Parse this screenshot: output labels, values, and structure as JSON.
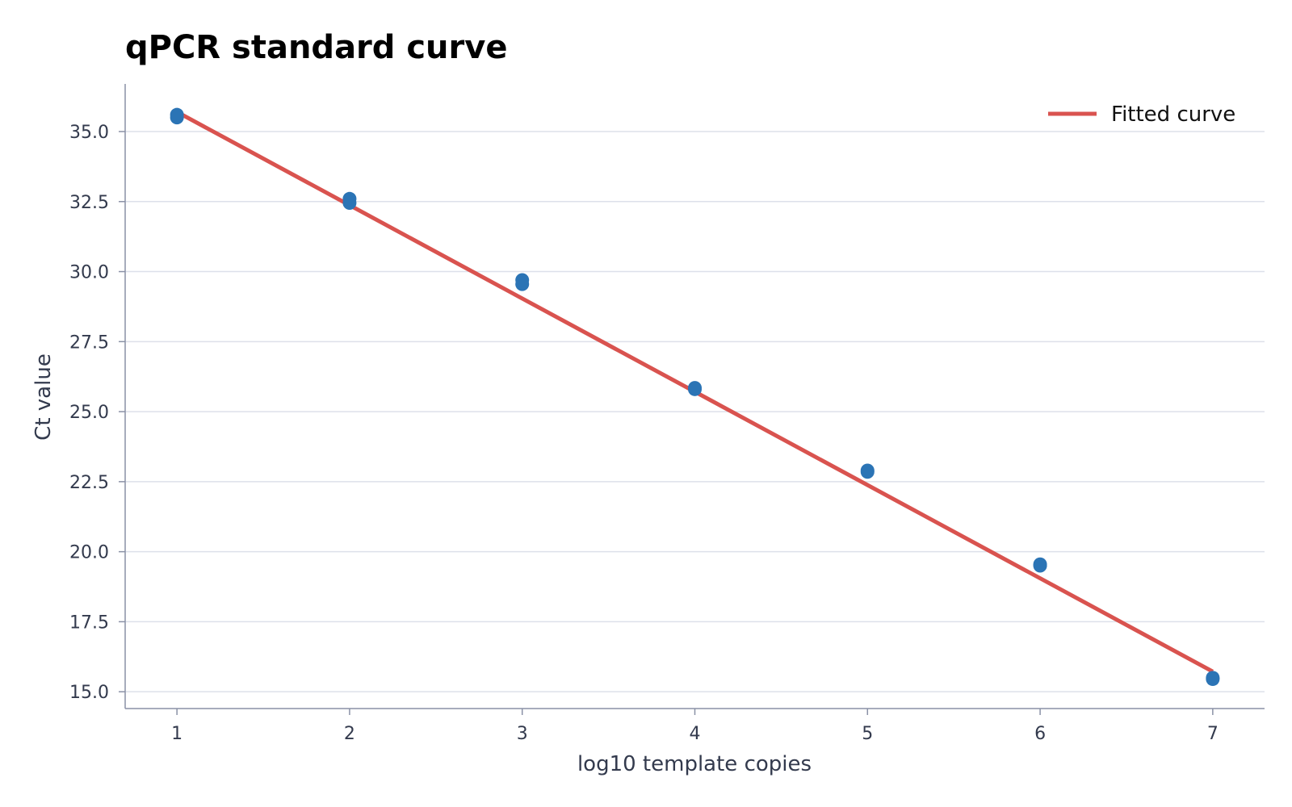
{
  "chart_data": {
    "type": "scatter",
    "title": "qPCR standard curve",
    "xlabel": "log10 template copies",
    "ylabel": "Ct value",
    "xlim": [
      0.7,
      7.3
    ],
    "ylim": [
      14.4,
      36.7
    ],
    "x_ticks": [
      1,
      2,
      3,
      4,
      5,
      6,
      7
    ],
    "x_tick_labels": [
      "1",
      "2",
      "3",
      "4",
      "5",
      "6",
      "7"
    ],
    "y_ticks": [
      15.0,
      17.5,
      20.0,
      22.5,
      25.0,
      27.5,
      30.0,
      32.5,
      35.0
    ],
    "y_tick_labels": [
      "15.0",
      "17.5",
      "20.0",
      "22.5",
      "25.0",
      "27.5",
      "30.0",
      "32.5",
      "35.0"
    ],
    "grid": "horizontal",
    "legend_position": "top-right",
    "series": [
      {
        "kind": "points",
        "color": "#2b74b5",
        "points": [
          {
            "x": 1,
            "y": 35.5
          },
          {
            "x": 1,
            "y": 35.6
          },
          {
            "x": 2,
            "y": 32.45
          },
          {
            "x": 2,
            "y": 32.6
          },
          {
            "x": 3,
            "y": 29.55
          },
          {
            "x": 3,
            "y": 29.7
          },
          {
            "x": 4,
            "y": 25.8
          },
          {
            "x": 4,
            "y": 25.85
          },
          {
            "x": 5,
            "y": 22.85
          },
          {
            "x": 5,
            "y": 22.9
          },
          {
            "x": 6,
            "y": 19.5
          },
          {
            "x": 6,
            "y": 19.55
          },
          {
            "x": 7,
            "y": 15.45
          },
          {
            "x": 7,
            "y": 15.5
          }
        ]
      },
      {
        "name": "Fitted curve",
        "kind": "line",
        "color": "#d9534f",
        "x": [
          1,
          7
        ],
        "y": [
          35.7,
          15.72
        ]
      }
    ]
  }
}
